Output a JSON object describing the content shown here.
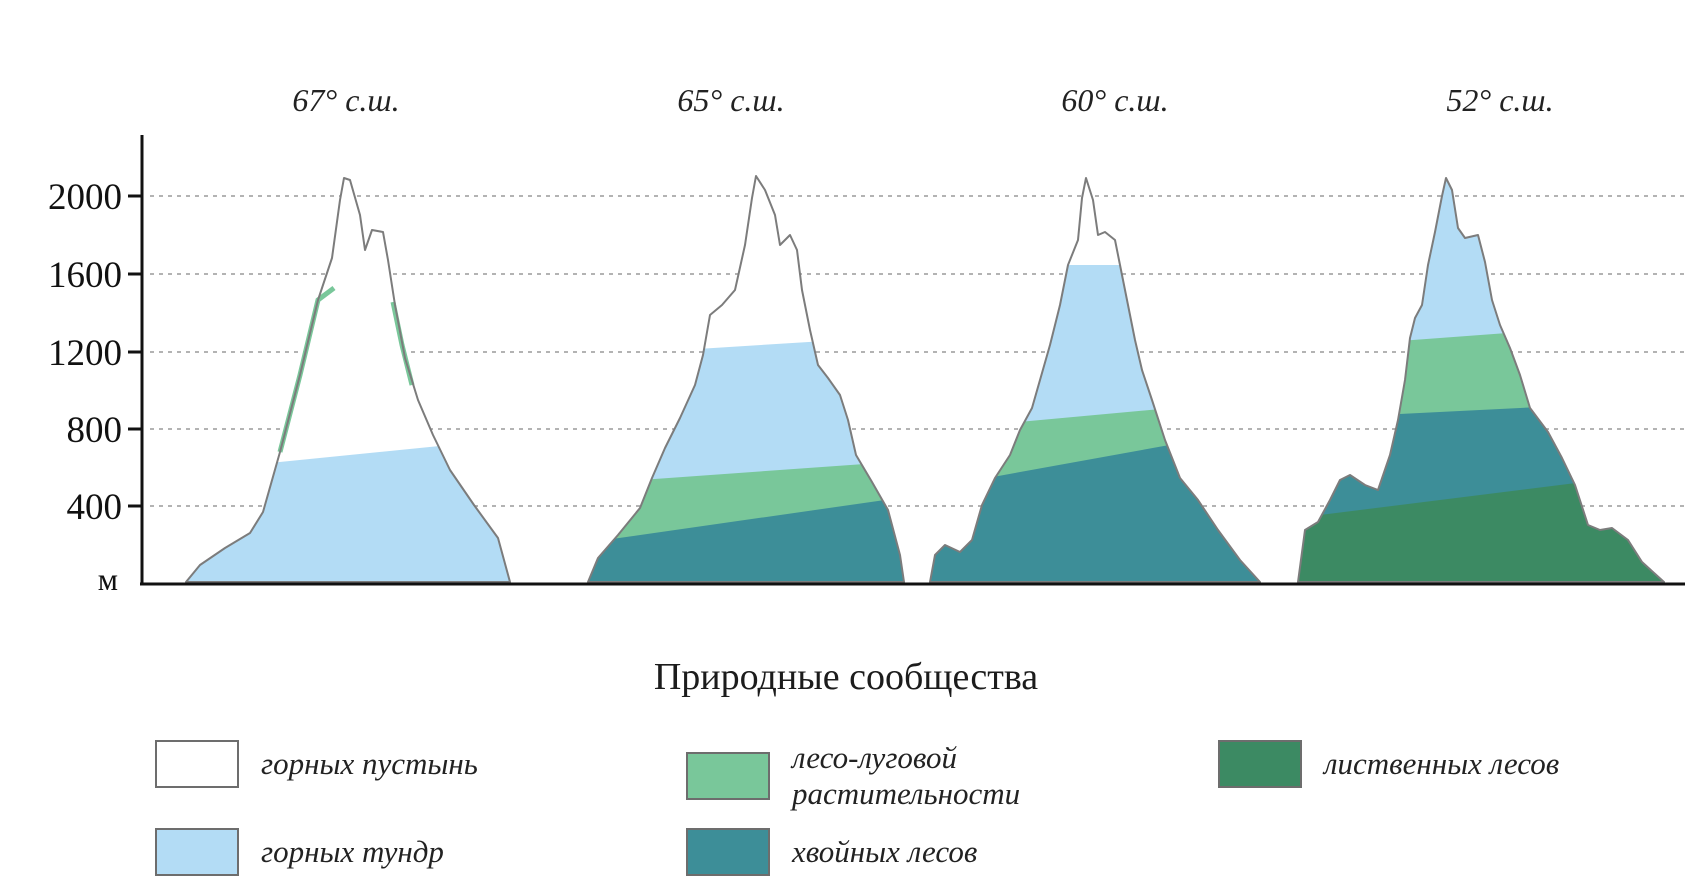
{
  "diagram": {
    "latitudes": [
      "67° с.ш.",
      "65° с.ш.",
      "60° с.ш.",
      "52° с.ш."
    ],
    "y_axis": {
      "ticks": [
        2000,
        1600,
        1200,
        800,
        400
      ],
      "unit": "м",
      "range": [
        0,
        2100
      ]
    },
    "grid": true
  },
  "colors": {
    "desert": "#ffffff",
    "tundra": "#b3dcf5",
    "meadow": "#79c79a",
    "conifer": "#3d8e98",
    "deciduous": "#3c8a63"
  },
  "legend": {
    "title": "Природные сообщества",
    "items": {
      "desert": "горных пустынь",
      "tundra": "горных тундр",
      "meadow_1": "лесо-луговой",
      "meadow_2": "растительности",
      "conifer": "хвойных лесов",
      "deciduous": "лиственных лесов"
    }
  }
}
